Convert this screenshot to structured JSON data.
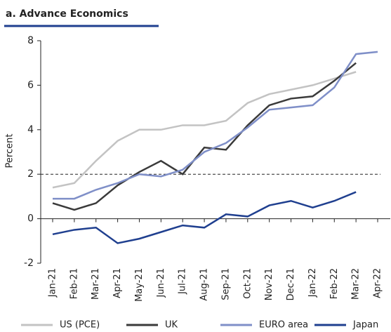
{
  "chart_data": {
    "type": "line",
    "title": "a. Advance Economics",
    "y_label": "Percent",
    "categories": [
      "Jan-21",
      "Feb-21",
      "Mar-21",
      "Apr-21",
      "May-21",
      "Jun-21",
      "Jul-21",
      "Aug-21",
      "Sep-21",
      "Oct-21",
      "Nov-21",
      "Dec-21",
      "Jan-22",
      "Feb-22",
      "Mar-22",
      "Apr-22"
    ],
    "series": [
      {
        "name": "US (PCE)",
        "color": "#c3c3c3",
        "values": [
          1.4,
          1.6,
          2.6,
          3.5,
          4.0,
          4.0,
          4.2,
          4.2,
          4.4,
          5.2,
          5.6,
          5.8,
          6.0,
          6.3,
          6.6,
          null
        ]
      },
      {
        "name": "UK",
        "color": "#3a3a3a",
        "values": [
          0.7,
          0.4,
          0.7,
          1.5,
          2.1,
          2.6,
          2.0,
          3.2,
          3.1,
          4.2,
          5.1,
          5.4,
          5.5,
          6.2,
          7.0,
          null
        ]
      },
      {
        "name": "EURO area",
        "color": "#7f8fc8",
        "values": [
          0.9,
          0.9,
          1.3,
          1.6,
          2.0,
          1.9,
          2.2,
          3.0,
          3.4,
          4.1,
          4.9,
          5.0,
          5.1,
          5.9,
          7.4,
          7.5
        ]
      },
      {
        "name": "Japan",
        "color": "#1f3f8f",
        "values": [
          -0.7,
          -0.5,
          -0.4,
          -1.1,
          -0.9,
          -0.6,
          -0.3,
          -0.4,
          0.2,
          0.1,
          0.6,
          0.8,
          0.5,
          0.8,
          1.2,
          null
        ]
      }
    ],
    "reference_line": 2,
    "ylim": [
      -2,
      8
    ],
    "yticks": [
      -2,
      0,
      2,
      4,
      6,
      8
    ]
  }
}
